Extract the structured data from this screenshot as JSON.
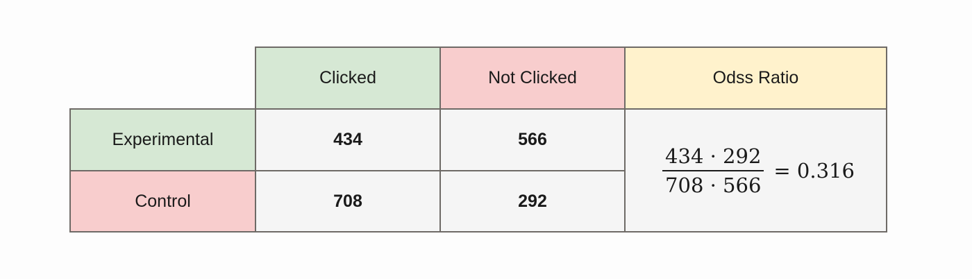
{
  "table": {
    "headers": [
      "Clicked",
      "Not Clicked",
      "Odss Ratio"
    ],
    "rows": [
      {
        "label": "Experimental",
        "values": [
          "434",
          "566"
        ]
      },
      {
        "label": "Control",
        "values": [
          "708",
          "292"
        ]
      }
    ]
  },
  "formula": {
    "numerator": "434 · 292",
    "denominator": "708 · 566",
    "result": "= 0.316"
  },
  "colors": {
    "green": "#d6e8d4",
    "pink": "#f8cdcd",
    "yellow": "#fff2cc",
    "gray": "#f5f5f5",
    "border": "#6e6a66"
  }
}
